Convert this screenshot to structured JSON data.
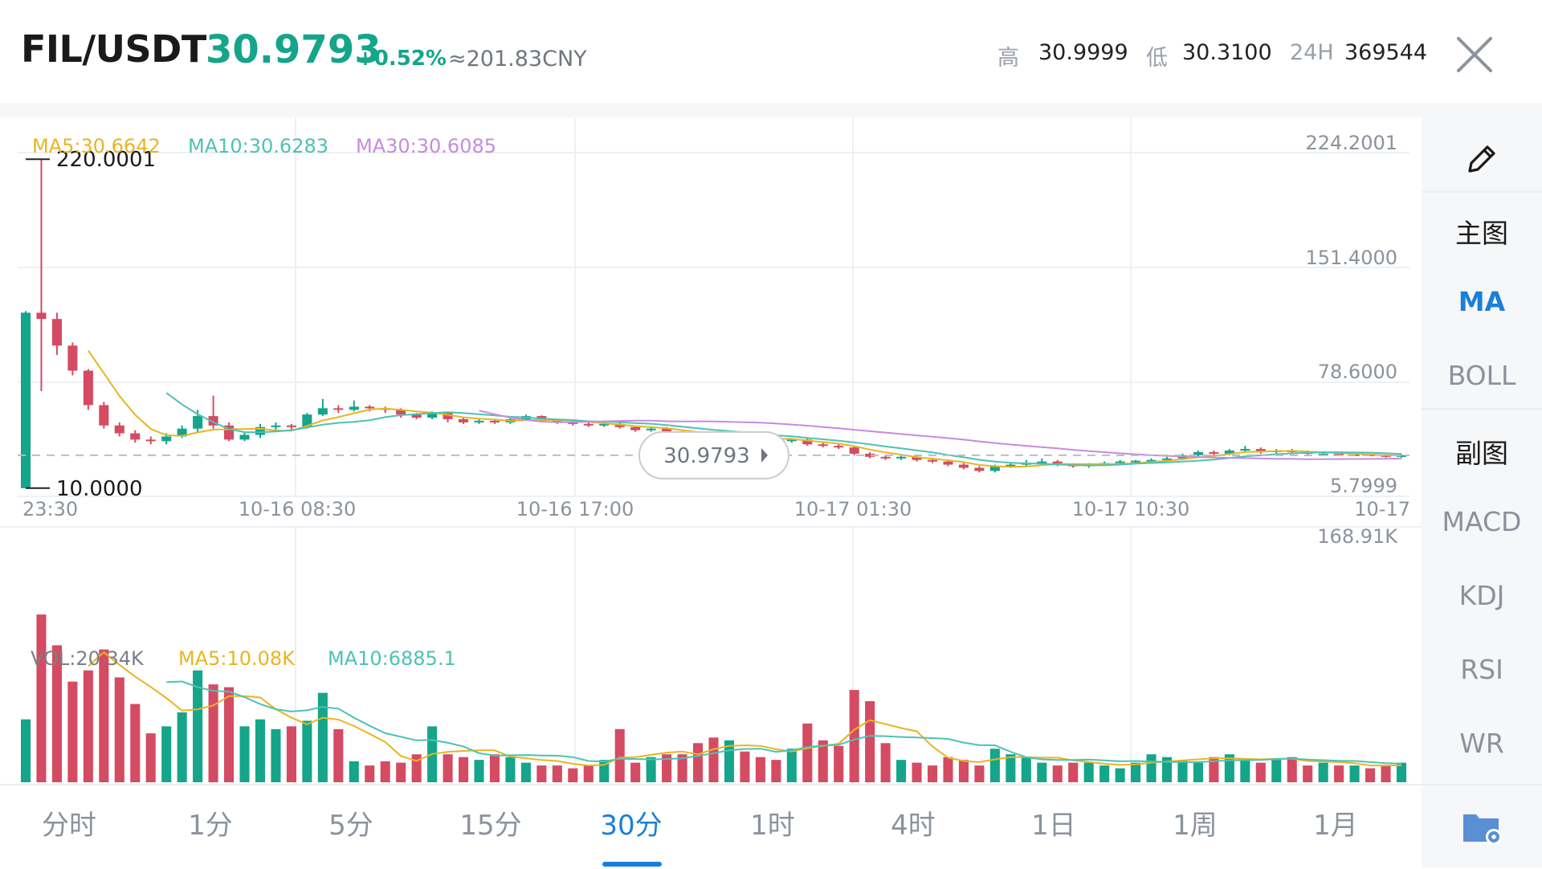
{
  "header": {
    "pair": "FIL/USDT",
    "last_price": "30.9793",
    "change_pct": "+0.52%",
    "cny_approx": "≈201.83CNY",
    "high_label": "高",
    "high_value": "30.9999",
    "low_label": "低",
    "low_value": "30.3100",
    "vol24_label": "24H",
    "vol24_value": "369544"
  },
  "colors": {
    "up": "#14a58a",
    "down": "#d44b63",
    "ma5": "#e8b522",
    "ma10": "#4dc2b4",
    "ma30": "#c78be0",
    "accent": "#1a7fd8"
  },
  "price_legend": {
    "ma5": "MA5:30.6642",
    "ma10": "MA10:30.6283",
    "ma30": "MA30:30.6085"
  },
  "volume_legend": {
    "vol": "VOL:20.34K",
    "ma5": "MA5:10.08K",
    "ma10": "MA10:6885.1"
  },
  "price_axis": {
    "labels": [
      "224.2001",
      "151.4000",
      "78.6000",
      "5.7999"
    ],
    "max_marker": "220.0001",
    "min_marker": "10.0000",
    "current_price_tag": "30.9793"
  },
  "volume_axis": {
    "max_label": "168.91K"
  },
  "time_axis": [
    "23:30",
    "10-16 08:30",
    "10-16 17:00",
    "10-17 01:30",
    "10-17 10:30",
    "10-17"
  ],
  "sidebar": {
    "draw_icon": "pencil-icon",
    "main_chart": "主图",
    "main_items": [
      "MA",
      "BOLL"
    ],
    "sub_chart": "副图",
    "sub_items": [
      "MACD",
      "KDJ",
      "RSI",
      "WR"
    ]
  },
  "tabs": [
    "分时",
    "1分",
    "5分",
    "15分",
    "30分",
    "1时",
    "4时",
    "1日",
    "1周",
    "1月"
  ],
  "active_tab": "30分",
  "chart_data": {
    "type": "candlestick",
    "price_range": [
      5.7999,
      224.2001
    ],
    "volume_max": 168910,
    "grid": true,
    "candles": [
      [
        10.0,
        122.0,
        123.0,
        10.0
      ],
      [
        122.0,
        118.0,
        220.0,
        72.0
      ],
      [
        118.0,
        101.0,
        122.0,
        95.0
      ],
      [
        101.0,
        85.0,
        103.0,
        82.0
      ],
      [
        85.0,
        63.0,
        86.0,
        60.0
      ],
      [
        63.0,
        50.0,
        65.0,
        48.0
      ],
      [
        50.0,
        45.0,
        52.0,
        43.0
      ],
      [
        45.0,
        41.0,
        47.0,
        39.0
      ],
      [
        41.0,
        40.0,
        43.0,
        38.0
      ],
      [
        40.0,
        43.0,
        45.0,
        38.0
      ],
      [
        43.0,
        48.0,
        50.0,
        42.0
      ],
      [
        48.0,
        56.0,
        60.0,
        46.0
      ],
      [
        56.0,
        50.0,
        69.0,
        48.0
      ],
      [
        50.0,
        41.0,
        52.0,
        40.0
      ],
      [
        41.0,
        44.0,
        46.0,
        40.0
      ],
      [
        44.0,
        49.0,
        51.0,
        42.0
      ],
      [
        49.0,
        50.0,
        52.0,
        47.0
      ],
      [
        50.0,
        49.0,
        51.0,
        47.0
      ],
      [
        49.0,
        57.0,
        58.0,
        48.0
      ],
      [
        57.0,
        61.0,
        67.0,
        56.0
      ],
      [
        61.0,
        60.0,
        63.0,
        58.0
      ],
      [
        60.0,
        62.0,
        66.0,
        59.0
      ],
      [
        62.0,
        61.0,
        63.0,
        59.0
      ],
      [
        61.0,
        60.0,
        62.0,
        58.0
      ],
      [
        60.0,
        57.0,
        61.0,
        55.0
      ],
      [
        57.0,
        55.0,
        58.0,
        54.0
      ],
      [
        55.0,
        58.0,
        59.0,
        54.0
      ],
      [
        58.0,
        54.0,
        58.5,
        52.0
      ],
      [
        54.0,
        52.0,
        55.0,
        51.0
      ],
      [
        52.0,
        53.0,
        54.0,
        51.0
      ],
      [
        53.0,
        52.0,
        54.0,
        51.0
      ],
      [
        52.0,
        54.0,
        55.0,
        51.0
      ],
      [
        54.0,
        56.0,
        57.0,
        53.0
      ],
      [
        56.0,
        53.0,
        56.5,
        52.0
      ],
      [
        53.0,
        52.0,
        54.0,
        51.0
      ],
      [
        52.0,
        51.0,
        53.0,
        50.0
      ],
      [
        51.0,
        50.0,
        52.0,
        49.0
      ],
      [
        50.0,
        51.0,
        52.0,
        49.0
      ],
      [
        51.0,
        49.0,
        52.0,
        48.0
      ],
      [
        49.0,
        47.0,
        50.0,
        46.0
      ],
      [
        47.0,
        48.0,
        49.0,
        46.0
      ],
      [
        48.0,
        46.0,
        49.0,
        45.0
      ],
      [
        46.0,
        45.0,
        47.0,
        44.0
      ],
      [
        45.0,
        43.0,
        46.0,
        42.0
      ],
      [
        43.0,
        42.0,
        44.0,
        41.0
      ],
      [
        42.0,
        43.0,
        44.0,
        41.0
      ],
      [
        43.0,
        42.0,
        44.0,
        41.0
      ],
      [
        42.0,
        41.0,
        43.0,
        40.0
      ],
      [
        41.0,
        40.0,
        42.0,
        39.0
      ],
      [
        40.0,
        41.0,
        42.0,
        39.0
      ],
      [
        41.0,
        38.0,
        42.0,
        37.0
      ],
      [
        38.0,
        37.0,
        39.0,
        36.0
      ],
      [
        37.0,
        36.0,
        38.0,
        35.0
      ],
      [
        36.0,
        32.0,
        37.0,
        31.0
      ],
      [
        32.0,
        30.0,
        33.0,
        29.0
      ],
      [
        30.0,
        29.0,
        31.0,
        28.0
      ],
      [
        29.0,
        30.0,
        31.0,
        28.0
      ],
      [
        30.0,
        28.0,
        31.0,
        27.0
      ],
      [
        28.0,
        27.0,
        29.0,
        26.0
      ],
      [
        27.0,
        25.0,
        28.0,
        24.0
      ],
      [
        25.0,
        23.0,
        26.0,
        22.0
      ],
      [
        23.0,
        21.0,
        24.0,
        20.0
      ],
      [
        21.0,
        24.0,
        25.0,
        20.0
      ],
      [
        24.0,
        25.0,
        26.0,
        23.0
      ],
      [
        25.0,
        26.0,
        28.0,
        24.0
      ],
      [
        26.0,
        27.0,
        29.0,
        25.0
      ],
      [
        27.0,
        25.0,
        28.0,
        24.0
      ],
      [
        25.0,
        24.0,
        26.0,
        23.0
      ],
      [
        24.0,
        25.0,
        26.0,
        23.0
      ],
      [
        25.0,
        26.0,
        27.0,
        24.0
      ],
      [
        26.0,
        27.0,
        28.0,
        25.0
      ],
      [
        27.0,
        27.5,
        28.0,
        26.0
      ],
      [
        27.5,
        28.0,
        29.0,
        27.0
      ],
      [
        28.0,
        29.0,
        30.0,
        27.5
      ],
      [
        29.0,
        31.0,
        32.0,
        28.0
      ],
      [
        31.0,
        33.0,
        34.0,
        30.0
      ],
      [
        33.0,
        32.0,
        34.0,
        31.0
      ],
      [
        32.0,
        34.0,
        35.0,
        31.0
      ],
      [
        34.0,
        35.0,
        37.0,
        33.0
      ],
      [
        35.0,
        33.0,
        36.0,
        32.0
      ],
      [
        33.0,
        34.0,
        35.0,
        32.0
      ],
      [
        34.0,
        33.0,
        35.0,
        32.0
      ],
      [
        33.0,
        32.0,
        34.0,
        31.0
      ],
      [
        32.0,
        32.0,
        33.0,
        31.0
      ],
      [
        32.0,
        31.0,
        33.0,
        30.5
      ],
      [
        31.0,
        31.5,
        32.0,
        30.5
      ],
      [
        31.5,
        31.0,
        32.0,
        30.5
      ],
      [
        31.0,
        30.0,
        31.5,
        29.5
      ],
      [
        30.0,
        31.0,
        31.5,
        29.5
      ]
    ],
    "volumes": [
      45,
      120,
      98,
      72,
      80,
      95,
      75,
      56,
      35,
      40,
      50,
      80,
      70,
      68,
      40,
      45,
      38,
      40,
      44,
      64,
      38,
      15,
      12,
      15,
      14,
      20,
      40,
      20,
      18,
      16,
      20,
      18,
      14,
      12,
      12,
      10,
      12,
      16,
      38,
      14,
      18,
      20,
      20,
      28,
      32,
      30,
      22,
      18,
      16,
      24,
      42,
      30,
      26,
      66,
      58,
      28,
      16,
      14,
      12,
      18,
      16,
      12,
      24,
      20,
      18,
      14,
      12,
      14,
      14,
      12,
      10,
      14,
      20,
      18,
      16,
      14,
      18,
      20,
      16,
      14,
      16,
      18,
      12,
      14,
      12,
      12,
      10,
      12,
      14
    ]
  }
}
